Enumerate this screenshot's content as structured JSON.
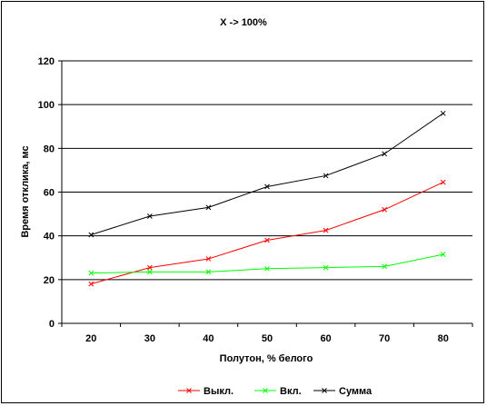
{
  "chart_data": {
    "type": "line",
    "title": "X -> 100%",
    "xlabel": "Полутон, % белого",
    "ylabel": "Время отклика, мс",
    "categories": [
      "20",
      "30",
      "40",
      "50",
      "60",
      "70",
      "80"
    ],
    "ylim": [
      0,
      120
    ],
    "yticks": [
      "0",
      "20",
      "40",
      "60",
      "80",
      "100",
      "120"
    ],
    "grid": true,
    "legend_position": "bottom",
    "series": [
      {
        "name": "Выкл.",
        "color": "#ff0000",
        "values": [
          18,
          25.5,
          29.5,
          38,
          42.5,
          52,
          64.5
        ]
      },
      {
        "name": "Вкл.",
        "color": "#00ff00",
        "values": [
          23,
          23.5,
          23.5,
          25,
          25.5,
          26,
          31.5
        ]
      },
      {
        "name": "Сумма",
        "color": "#000000",
        "values": [
          40.5,
          49,
          53,
          62.5,
          67.5,
          77.5,
          96
        ]
      }
    ]
  }
}
